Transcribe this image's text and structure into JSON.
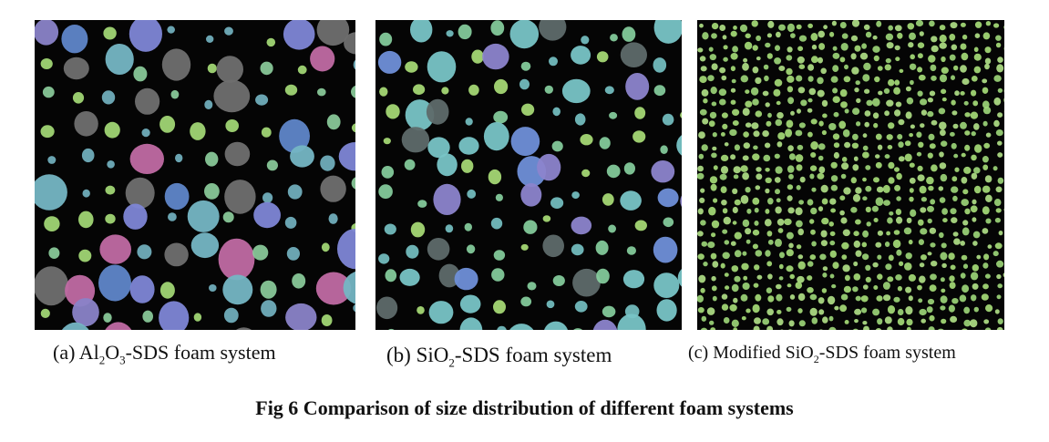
{
  "figure": {
    "panels": [
      {
        "id": "a",
        "caption_prefix": "(a) Al",
        "caption_sub1": "2",
        "caption_mid": "O",
        "caption_sub2": "3",
        "caption_suffix": "-SDS foam system",
        "palette": [
          "#7e86d6",
          "#5f86c9",
          "#75b6c4",
          "#8fd2a0",
          "#a9e07a",
          "#6f6f6f",
          "#8a83c8",
          "#c06aa3"
        ]
      },
      {
        "id": "b",
        "caption_prefix": "(b) SiO",
        "caption_sub1": "2",
        "caption_suffix": "-SDS foam system",
        "palette": [
          "#6f8fd8",
          "#78c4c6",
          "#8ad4a2",
          "#ade27a",
          "#8c84cc",
          "#5e6a6a"
        ]
      },
      {
        "id": "c",
        "caption_prefix": "(c) Modified SiO",
        "caption_sub1": "2",
        "caption_suffix": "-SDS foam system",
        "palette": [
          "#a9e07a",
          "#9ed87a",
          "#b2e388"
        ]
      }
    ],
    "title": "Fig 6 Comparison of size distribution of different foam systems"
  }
}
